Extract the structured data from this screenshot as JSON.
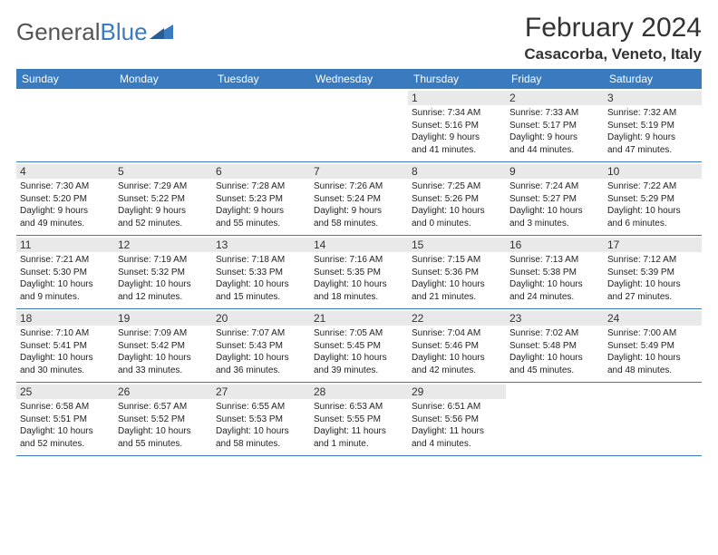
{
  "brand": {
    "part1": "General",
    "part2": "Blue"
  },
  "title": "February 2024",
  "location": "Casacorba, Veneto, Italy",
  "colors": {
    "header_bg": "#3a7bbf",
    "header_text": "#ffffff",
    "daynum_bg": "#e9e9e9",
    "rule": "#3a7bbf",
    "text": "#222222"
  },
  "day_names": [
    "Sunday",
    "Monday",
    "Tuesday",
    "Wednesday",
    "Thursday",
    "Friday",
    "Saturday"
  ],
  "weeks": [
    [
      {
        "empty": true
      },
      {
        "empty": true
      },
      {
        "empty": true
      },
      {
        "empty": true
      },
      {
        "day": "1",
        "sunrise": "Sunrise: 7:34 AM",
        "sunset": "Sunset: 5:16 PM",
        "dl1": "Daylight: 9 hours",
        "dl2": "and 41 minutes."
      },
      {
        "day": "2",
        "sunrise": "Sunrise: 7:33 AM",
        "sunset": "Sunset: 5:17 PM",
        "dl1": "Daylight: 9 hours",
        "dl2": "and 44 minutes."
      },
      {
        "day": "3",
        "sunrise": "Sunrise: 7:32 AM",
        "sunset": "Sunset: 5:19 PM",
        "dl1": "Daylight: 9 hours",
        "dl2": "and 47 minutes."
      }
    ],
    [
      {
        "day": "4",
        "sunrise": "Sunrise: 7:30 AM",
        "sunset": "Sunset: 5:20 PM",
        "dl1": "Daylight: 9 hours",
        "dl2": "and 49 minutes."
      },
      {
        "day": "5",
        "sunrise": "Sunrise: 7:29 AM",
        "sunset": "Sunset: 5:22 PM",
        "dl1": "Daylight: 9 hours",
        "dl2": "and 52 minutes."
      },
      {
        "day": "6",
        "sunrise": "Sunrise: 7:28 AM",
        "sunset": "Sunset: 5:23 PM",
        "dl1": "Daylight: 9 hours",
        "dl2": "and 55 minutes."
      },
      {
        "day": "7",
        "sunrise": "Sunrise: 7:26 AM",
        "sunset": "Sunset: 5:24 PM",
        "dl1": "Daylight: 9 hours",
        "dl2": "and 58 minutes."
      },
      {
        "day": "8",
        "sunrise": "Sunrise: 7:25 AM",
        "sunset": "Sunset: 5:26 PM",
        "dl1": "Daylight: 10 hours",
        "dl2": "and 0 minutes."
      },
      {
        "day": "9",
        "sunrise": "Sunrise: 7:24 AM",
        "sunset": "Sunset: 5:27 PM",
        "dl1": "Daylight: 10 hours",
        "dl2": "and 3 minutes."
      },
      {
        "day": "10",
        "sunrise": "Sunrise: 7:22 AM",
        "sunset": "Sunset: 5:29 PM",
        "dl1": "Daylight: 10 hours",
        "dl2": "and 6 minutes."
      }
    ],
    [
      {
        "day": "11",
        "sunrise": "Sunrise: 7:21 AM",
        "sunset": "Sunset: 5:30 PM",
        "dl1": "Daylight: 10 hours",
        "dl2": "and 9 minutes."
      },
      {
        "day": "12",
        "sunrise": "Sunrise: 7:19 AM",
        "sunset": "Sunset: 5:32 PM",
        "dl1": "Daylight: 10 hours",
        "dl2": "and 12 minutes."
      },
      {
        "day": "13",
        "sunrise": "Sunrise: 7:18 AM",
        "sunset": "Sunset: 5:33 PM",
        "dl1": "Daylight: 10 hours",
        "dl2": "and 15 minutes."
      },
      {
        "day": "14",
        "sunrise": "Sunrise: 7:16 AM",
        "sunset": "Sunset: 5:35 PM",
        "dl1": "Daylight: 10 hours",
        "dl2": "and 18 minutes."
      },
      {
        "day": "15",
        "sunrise": "Sunrise: 7:15 AM",
        "sunset": "Sunset: 5:36 PM",
        "dl1": "Daylight: 10 hours",
        "dl2": "and 21 minutes."
      },
      {
        "day": "16",
        "sunrise": "Sunrise: 7:13 AM",
        "sunset": "Sunset: 5:38 PM",
        "dl1": "Daylight: 10 hours",
        "dl2": "and 24 minutes."
      },
      {
        "day": "17",
        "sunrise": "Sunrise: 7:12 AM",
        "sunset": "Sunset: 5:39 PM",
        "dl1": "Daylight: 10 hours",
        "dl2": "and 27 minutes."
      }
    ],
    [
      {
        "day": "18",
        "sunrise": "Sunrise: 7:10 AM",
        "sunset": "Sunset: 5:41 PM",
        "dl1": "Daylight: 10 hours",
        "dl2": "and 30 minutes."
      },
      {
        "day": "19",
        "sunrise": "Sunrise: 7:09 AM",
        "sunset": "Sunset: 5:42 PM",
        "dl1": "Daylight: 10 hours",
        "dl2": "and 33 minutes."
      },
      {
        "day": "20",
        "sunrise": "Sunrise: 7:07 AM",
        "sunset": "Sunset: 5:43 PM",
        "dl1": "Daylight: 10 hours",
        "dl2": "and 36 minutes."
      },
      {
        "day": "21",
        "sunrise": "Sunrise: 7:05 AM",
        "sunset": "Sunset: 5:45 PM",
        "dl1": "Daylight: 10 hours",
        "dl2": "and 39 minutes."
      },
      {
        "day": "22",
        "sunrise": "Sunrise: 7:04 AM",
        "sunset": "Sunset: 5:46 PM",
        "dl1": "Daylight: 10 hours",
        "dl2": "and 42 minutes."
      },
      {
        "day": "23",
        "sunrise": "Sunrise: 7:02 AM",
        "sunset": "Sunset: 5:48 PM",
        "dl1": "Daylight: 10 hours",
        "dl2": "and 45 minutes."
      },
      {
        "day": "24",
        "sunrise": "Sunrise: 7:00 AM",
        "sunset": "Sunset: 5:49 PM",
        "dl1": "Daylight: 10 hours",
        "dl2": "and 48 minutes."
      }
    ],
    [
      {
        "day": "25",
        "sunrise": "Sunrise: 6:58 AM",
        "sunset": "Sunset: 5:51 PM",
        "dl1": "Daylight: 10 hours",
        "dl2": "and 52 minutes."
      },
      {
        "day": "26",
        "sunrise": "Sunrise: 6:57 AM",
        "sunset": "Sunset: 5:52 PM",
        "dl1": "Daylight: 10 hours",
        "dl2": "and 55 minutes."
      },
      {
        "day": "27",
        "sunrise": "Sunrise: 6:55 AM",
        "sunset": "Sunset: 5:53 PM",
        "dl1": "Daylight: 10 hours",
        "dl2": "and 58 minutes."
      },
      {
        "day": "28",
        "sunrise": "Sunrise: 6:53 AM",
        "sunset": "Sunset: 5:55 PM",
        "dl1": "Daylight: 11 hours",
        "dl2": "and 1 minute."
      },
      {
        "day": "29",
        "sunrise": "Sunrise: 6:51 AM",
        "sunset": "Sunset: 5:56 PM",
        "dl1": "Daylight: 11 hours",
        "dl2": "and 4 minutes."
      },
      {
        "empty": true
      },
      {
        "empty": true
      }
    ]
  ]
}
